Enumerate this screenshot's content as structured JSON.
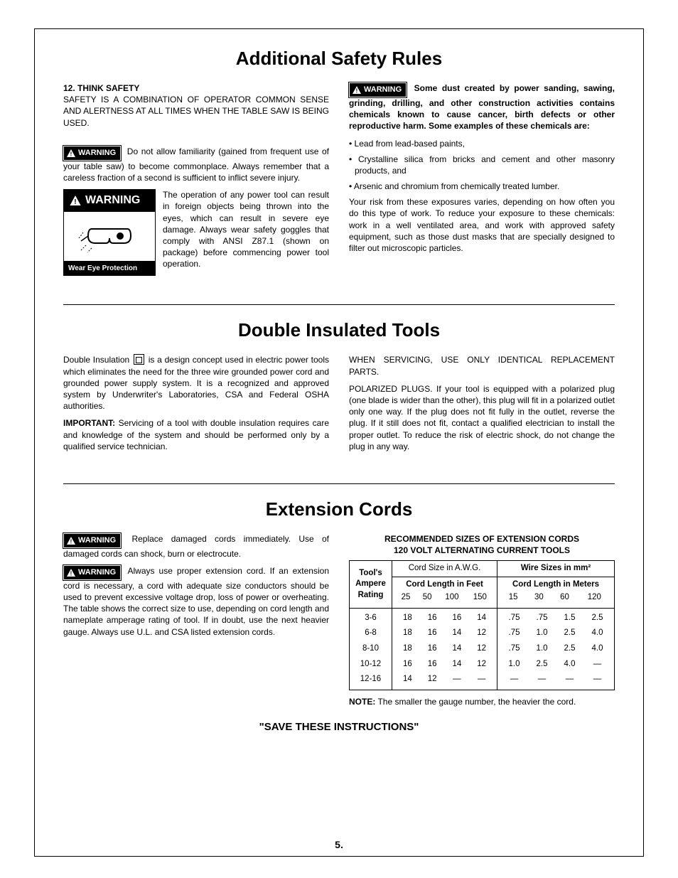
{
  "section1": {
    "title": "Additional Safety Rules",
    "left": {
      "rule_title": "12. THINK SAFETY",
      "rule_body": "SAFETY IS A COMBINATION OF OPERATOR COMMON SENSE AND ALERTNESS AT ALL TIMES WHEN THE TABLE SAW IS BEING USED.",
      "warn1_label": "WARNING",
      "warn1_text": "Do not allow familiarity (gained from frequent use of your table saw) to become commonplace. Always remember that a careless fraction of a second is sufficient to inflict severe injury.",
      "eye_header": "WARNING",
      "eye_footer": "Wear Eye Protection",
      "eye_text": "The operation of any power tool can result in foreign objects being thrown into the eyes, which can result in severe eye damage. Always wear safety goggles that comply with ANSI Z87.1 (shown on package) before commencing power tool operation."
    },
    "right": {
      "warn_label": "WARNING",
      "warn_text": "Some dust created by power sanding, sawing, grinding, drilling, and other construction activities contains chemicals known to cause cancer, birth defects or other reproductive harm.  Some examples of these chemicals are:",
      "bullets": [
        "Lead from lead-based paints,",
        "Crystalline silica from bricks and cement and other masonry products, and",
        "Arsenic and chromium from chemically treated lumber."
      ],
      "closing": "Your risk from these exposures varies, depending on how often you do this type of work. To reduce your exposure to these chemicals: work in a well ventilated area, and work with approved safety equipment, such as those dust masks that are specially designed to filter out microscopic particles."
    }
  },
  "section2": {
    "title": "Double Insulated Tools",
    "left": {
      "p1a": "Double Insulation ",
      "p1b": " is a design concept used in electric power tools which eliminates the need for the three wire grounded power cord and grounded power supply system. It is a recognized and approved system by Underwriter's Laboratories, CSA and Federal OSHA authorities.",
      "p2_bold": "IMPORTANT:",
      "p2": " Servicing of a tool with double insulation requires care and knowledge of the system and should be performed only by a qualified service technician."
    },
    "right": {
      "p1": "WHEN SERVICING, USE ONLY IDENTICAL REPLACEMENT PARTS.",
      "p2": "POLARIZED PLUGS. If your tool is equipped with a polarized plug (one blade is wider than the other), this plug will fit in a polarized outlet only one way. If the plug does not fit fully in the outlet, reverse the plug. If it still does not fit, contact a qualified electrician to install the proper outlet. To reduce the risk of electric shock, do not change the plug in any way."
    }
  },
  "section3": {
    "title": "Extension Cords",
    "left": {
      "warn1_label": "WARNING",
      "warn1_text": "Replace damaged cords immediately. Use of damaged cords can shock, burn or electrocute.",
      "warn2_label": "WARNING",
      "warn2_text": "Always use proper extension cord. If an extension cord is necessary, a cord with adequate size conductors should be used to prevent excessive voltage drop, loss of power or overheating. The table shows the correct size to use, depending on cord length and nameplate amperage rating of tool. If in doubt, use the next heavier gauge. Always use U.L. and CSA listed extension cords."
    },
    "right": {
      "table_title1": "RECOMMENDED SIZES OF EXTENSION CORDS",
      "table_title2": "120 VOLT ALTERNATING CURRENT TOOLS",
      "col0_a": "Tool's",
      "col0_b": "Ampere",
      "col0_c": "Rating",
      "col1_head": "Cord Size in A.W.G.",
      "col2_head": "Wire Sizes in mm²",
      "sub1": "Cord Length in Feet",
      "sub2": "Cord Length in Meters",
      "feet_cols": [
        "25",
        "50",
        "100",
        "150"
      ],
      "meter_cols": [
        "15",
        "30",
        "60",
        "120"
      ],
      "amp_rows": [
        "3-6",
        "6-8",
        "8-10",
        "10-12",
        "12-16"
      ],
      "awg_values": [
        [
          "18",
          "16",
          "16",
          "14"
        ],
        [
          "18",
          "16",
          "14",
          "12"
        ],
        [
          "18",
          "16",
          "14",
          "12"
        ],
        [
          "16",
          "16",
          "14",
          "12"
        ],
        [
          "14",
          "12",
          "—",
          "—"
        ]
      ],
      "mm_values": [
        [
          ".75",
          ".75",
          "1.5",
          "2.5"
        ],
        [
          ".75",
          "1.0",
          "2.5",
          "4.0"
        ],
        [
          ".75",
          "1.0",
          "2.5",
          "4.0"
        ],
        [
          "1.0",
          "2.5",
          "4.0",
          "—"
        ],
        [
          "—",
          "—",
          "—",
          "—"
        ]
      ],
      "note_bold": "NOTE:",
      "note": " The smaller the gauge number, the heavier the cord."
    }
  },
  "save_label": "\"SAVE THESE INSTRUCTIONS\"",
  "page_number": "5."
}
